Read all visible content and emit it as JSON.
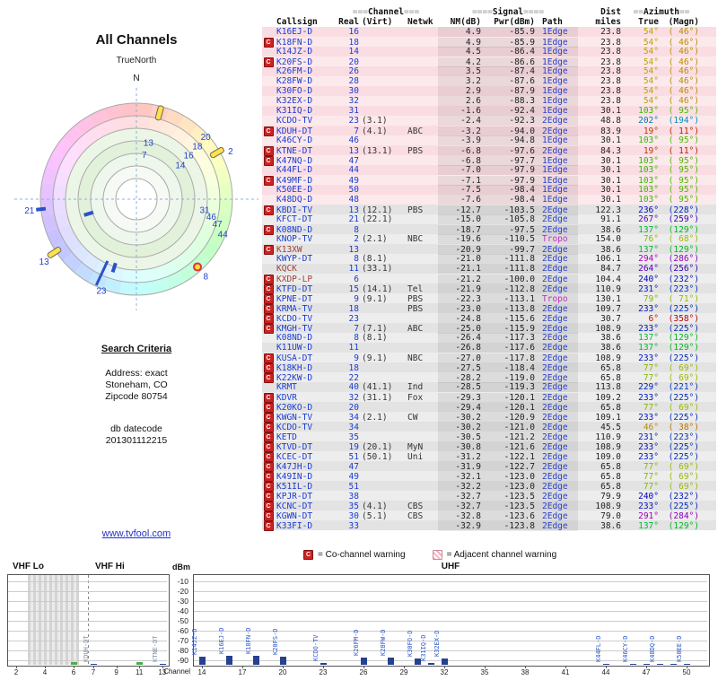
{
  "page_title": "All Channels",
  "link_text": "www.tvfool.com",
  "radar": {
    "true_north": "TrueNorth",
    "north": "N",
    "labels": [
      {
        "t": "13",
        "az": 12,
        "r": 0.6
      },
      {
        "t": "7",
        "az": 10,
        "r": 0.47
      },
      {
        "t": "20",
        "az": 48,
        "r": 0.97
      },
      {
        "t": "18",
        "az": 49,
        "r": 0.84
      },
      {
        "t": "16",
        "az": 50,
        "r": 0.71
      },
      {
        "t": "14",
        "az": 52,
        "r": 0.58
      },
      {
        "t": "2",
        "az": 63,
        "r": 1.1
      },
      {
        "t": "31",
        "az": 99,
        "r": 0.72
      },
      {
        "t": "46",
        "az": 103,
        "r": 0.8
      },
      {
        "t": "47",
        "az": 107,
        "r": 0.88
      },
      {
        "t": "44",
        "az": 112,
        "r": 0.97
      },
      {
        "t": "8",
        "az": 138,
        "r": 1.08
      },
      {
        "t": "23",
        "az": 201,
        "r": 1.02
      },
      {
        "t": "13",
        "az": 236,
        "r": 1.16
      },
      {
        "t": "21",
        "az": 264,
        "r": 1.12
      }
    ],
    "pointers": [
      {
        "type": "yellow",
        "az": 15,
        "r": 0.93
      },
      {
        "type": "yellow",
        "az": 60,
        "r": 0.97
      },
      {
        "type": "yellow",
        "az": 237,
        "r": 1.02
      },
      {
        "type": "dot",
        "az": 138,
        "r": 0.95
      },
      {
        "type": "line",
        "az": 205,
        "r": 0.85
      },
      {
        "type": "tick",
        "az": 264,
        "r": 1.0
      },
      {
        "type": "tick",
        "az": 198,
        "r": 0.75
      },
      {
        "type": "tick",
        "az": 253,
        "r": 0.52
      }
    ]
  },
  "search": {
    "heading": "Search Criteria",
    "lines": [
      "Address: exact",
      "Stoneham, CO",
      "Zipcode 80754"
    ],
    "datecode_label": "db datecode",
    "datecode": "201301112215"
  },
  "table": {
    "header": {
      "eq3": "===",
      "eq4": "====",
      "eq2": "==",
      "channel_group": "Channel",
      "signal_group": "Signal",
      "dist_group": "Dist",
      "azimuth_group": "Azimuth",
      "callsign": "Callsign",
      "real": "Real",
      "virt": "(Virt)",
      "netwk": "Netwk",
      "nm": "NM(dB)",
      "pwr": "Pwr(dBm)",
      "path": "Path",
      "miles": "miles",
      "true": "True",
      "magn": "(Magn)"
    },
    "row_columns": [
      "callsign",
      "real",
      "virt",
      "netwk",
      "nm_db",
      "pwr_dbm",
      "path",
      "dist_miles",
      "azimuth_true",
      "azimuth_magn",
      "flag",
      "analog"
    ],
    "rows": [
      [
        "K16EJ-D",
        "16",
        "",
        "",
        "4.9",
        "-85.9",
        "1Edge",
        "23.8",
        54,
        46,
        "",
        0
      ],
      [
        "K18FN-D",
        "18",
        "",
        "",
        "4.9",
        "-85.9",
        "1Edge",
        "23.8",
        54,
        46,
        "C",
        0
      ],
      [
        "K14JZ-D",
        "14",
        "",
        "",
        "4.5",
        "-86.4",
        "1Edge",
        "23.8",
        54,
        46,
        "",
        0
      ],
      [
        "K20FS-D",
        "20",
        "",
        "",
        "4.2",
        "-86.6",
        "1Edge",
        "23.8",
        54,
        46,
        "C",
        0
      ],
      [
        "K26FM-D",
        "26",
        "",
        "",
        "3.5",
        "-87.4",
        "1Edge",
        "23.8",
        54,
        46,
        "",
        0
      ],
      [
        "K28FW-D",
        "28",
        "",
        "",
        "3.2",
        "-87.6",
        "1Edge",
        "23.8",
        54,
        46,
        "",
        0
      ],
      [
        "K30FO-D",
        "30",
        "",
        "",
        "2.9",
        "-87.9",
        "1Edge",
        "23.8",
        54,
        46,
        "",
        0
      ],
      [
        "K32EX-D",
        "32",
        "",
        "",
        "2.6",
        "-88.3",
        "1Edge",
        "23.8",
        54,
        46,
        "",
        0
      ],
      [
        "K31IQ-D",
        "31",
        "",
        "",
        "-1.6",
        "-92.4",
        "1Edge",
        "30.1",
        103,
        95,
        "",
        0
      ],
      [
        "KCDO-TV",
        "23",
        "(3.1)",
        "",
        "-2.4",
        "-92.3",
        "2Edge",
        "48.8",
        202,
        194,
        "",
        0
      ],
      [
        "KDUH-DT",
        "7",
        "(4.1)",
        "ABC",
        "-3.2",
        "-94.0",
        "2Edge",
        "83.9",
        19,
        11,
        "C",
        0
      ],
      [
        "K46CY-D",
        "46",
        "",
        "",
        "-3.9",
        "-94.8",
        "1Edge",
        "30.1",
        103,
        95,
        "",
        0
      ],
      [
        "KTNE-DT",
        "13",
        "(13.1)",
        "PBS",
        "-6.8",
        "-97.6",
        "2Edge",
        "84.3",
        19,
        11,
        "C",
        0
      ],
      [
        "K47NQ-D",
        "47",
        "",
        "",
        "-6.8",
        "-97.7",
        "1Edge",
        "30.1",
        103,
        95,
        "C",
        0
      ],
      [
        "K44FL-D",
        "44",
        "",
        "",
        "-7.0",
        "-97.9",
        "1Edge",
        "30.1",
        103,
        95,
        "",
        0
      ],
      [
        "K49MF-D",
        "49",
        "",
        "",
        "-7.1",
        "-97.9",
        "1Edge",
        "30.1",
        103,
        95,
        "C",
        0
      ],
      [
        "K50EE-D",
        "50",
        "",
        "",
        "-7.5",
        "-98.4",
        "1Edge",
        "30.1",
        103,
        95,
        "",
        0
      ],
      [
        "K48DQ-D",
        "48",
        "",
        "",
        "-7.6",
        "-98.4",
        "1Edge",
        "30.1",
        103,
        95,
        "",
        0
      ],
      [
        "KBDI-TV",
        "13",
        "(12.1)",
        "PBS",
        "-12.7",
        "-103.5",
        "2Edge",
        "122.3",
        236,
        228,
        "C",
        0
      ],
      [
        "KFCT-DT",
        "21",
        "(22.1)",
        "",
        "-15.0",
        "-105.8",
        "2Edge",
        "91.1",
        267,
        259,
        "",
        0
      ],
      [
        "K08ND-D",
        "8",
        "",
        "",
        "-18.7",
        "-97.5",
        "2Edge",
        "38.6",
        137,
        129,
        "C",
        0
      ],
      [
        "KNOP-TV",
        "2",
        "(2.1)",
        "NBC",
        "-19.6",
        "-110.5",
        "Tropo",
        "154.0",
        76,
        68,
        "",
        0
      ],
      [
        "K13XW",
        "13",
        "",
        "",
        "-20.9",
        "-99.7",
        "2Edge",
        "38.6",
        137,
        129,
        "C",
        1
      ],
      [
        "KWYP-DT",
        "8",
        "(8.1)",
        "",
        "-21.0",
        "-111.8",
        "2Edge",
        "106.1",
        294,
        286,
        "",
        0
      ],
      [
        "KQCK",
        "11",
        "(33.1)",
        "",
        "-21.1",
        "-111.8",
        "2Edge",
        "84.7",
        264,
        256,
        "",
        1
      ],
      [
        "KXDP-LP",
        "6",
        "",
        "",
        "-21.2",
        "-100.0",
        "2Edge",
        "104.4",
        240,
        232,
        "C",
        1
      ],
      [
        "KTFD-DT",
        "15",
        "(14.1)",
        "Tel",
        "-21.9",
        "-112.8",
        "2Edge",
        "110.9",
        231,
        223,
        "C",
        0
      ],
      [
        "KPNE-DT",
        "9",
        "(9.1)",
        "PBS",
        "-22.3",
        "-113.1",
        "Tropo",
        "130.1",
        79,
        71,
        "C",
        0
      ],
      [
        "KRMA-TV",
        "18",
        "",
        "PBS",
        "-23.0",
        "-113.8",
        "2Edge",
        "109.7",
        233,
        225,
        "C",
        0
      ],
      [
        "KCDO-TV",
        "23",
        "",
        "",
        "-24.8",
        "-115.6",
        "2Edge",
        "30.7",
        6,
        358,
        "C",
        0
      ],
      [
        "KMGH-TV",
        "7",
        "(7.1)",
        "ABC",
        "-25.0",
        "-115.9",
        "2Edge",
        "108.9",
        233,
        225,
        "C",
        0
      ],
      [
        "K08ND-D",
        "8",
        "(8.1)",
        "",
        "-26.4",
        "-117.3",
        "2Edge",
        "38.6",
        137,
        129,
        "",
        0
      ],
      [
        "K11UW-D",
        "11",
        "",
        "",
        "-26.8",
        "-117.6",
        "2Edge",
        "38.6",
        137,
        129,
        "",
        0
      ],
      [
        "KUSA-DT",
        "9",
        "(9.1)",
        "NBC",
        "-27.0",
        "-117.8",
        "2Edge",
        "108.9",
        233,
        225,
        "C",
        0
      ],
      [
        "K18KH-D",
        "18",
        "",
        "",
        "-27.5",
        "-118.4",
        "2Edge",
        "65.8",
        77,
        69,
        "C",
        0
      ],
      [
        "K22KW-D",
        "22",
        "",
        "",
        "-28.2",
        "-119.0",
        "2Edge",
        "65.8",
        77,
        69,
        "C",
        0
      ],
      [
        "KRMT",
        "40",
        "(41.1)",
        "Ind",
        "-28.5",
        "-119.3",
        "2Edge",
        "113.8",
        229,
        221,
        "",
        0
      ],
      [
        "KDVR",
        "32",
        "(31.1)",
        "Fox",
        "-29.3",
        "-120.1",
        "2Edge",
        "109.2",
        233,
        225,
        "C",
        0
      ],
      [
        "K20KO-D",
        "20",
        "",
        "",
        "-29.4",
        "-120.1",
        "2Edge",
        "65.8",
        77,
        69,
        "C",
        0
      ],
      [
        "KWGN-TV",
        "34",
        "(2.1)",
        "CW",
        "-30.2",
        "-120.9",
        "2Edge",
        "109.1",
        233,
        225,
        "C",
        0
      ],
      [
        "KCDO-TV",
        "34",
        "",
        "",
        "-30.2",
        "-121.0",
        "2Edge",
        "45.5",
        46,
        38,
        "C",
        0
      ],
      [
        "KETD",
        "35",
        "",
        "",
        "-30.5",
        "-121.2",
        "2Edge",
        "110.9",
        231,
        223,
        "C",
        0
      ],
      [
        "KTVD-DT",
        "19",
        "(20.1)",
        "MyN",
        "-30.8",
        "-121.6",
        "2Edge",
        "108.9",
        233,
        225,
        "C",
        0
      ],
      [
        "KCEC-DT",
        "51",
        "(50.1)",
        "Uni",
        "-31.2",
        "-122.1",
        "2Edge",
        "109.0",
        233,
        225,
        "C",
        0
      ],
      [
        "K47JH-D",
        "47",
        "",
        "",
        "-31.9",
        "-122.7",
        "2Edge",
        "65.8",
        77,
        69,
        "C",
        0
      ],
      [
        "K49IN-D",
        "49",
        "",
        "",
        "-32.1",
        "-123.0",
        "2Edge",
        "65.8",
        77,
        69,
        "C",
        0
      ],
      [
        "K51IL-D",
        "51",
        "",
        "",
        "-32.2",
        "-123.0",
        "2Edge",
        "65.8",
        77,
        69,
        "C",
        0
      ],
      [
        "KPJR-DT",
        "38",
        "",
        "",
        "-32.7",
        "-123.5",
        "2Edge",
        "79.9",
        240,
        232,
        "C",
        0
      ],
      [
        "KCNC-DT",
        "35",
        "(4.1)",
        "CBS",
        "-32.7",
        "-123.5",
        "2Edge",
        "108.9",
        233,
        225,
        "C",
        0
      ],
      [
        "KGWN-DT",
        "30",
        "(5.1)",
        "CBS",
        "-32.8",
        "-123.6",
        "2Edge",
        "79.0",
        291,
        284,
        "C",
        0
      ],
      [
        "K33FI-D",
        "33",
        "",
        "",
        "-32.9",
        "-123.8",
        "2Edge",
        "38.6",
        137,
        129,
        "C",
        0
      ]
    ],
    "path_colors": {
      "1Edge": "#2940c8",
      "2Edge": "#2940c8",
      "Tropo": "#c030c0"
    },
    "callsign_color": "#1a3bd0",
    "analog_callsign_color": "#a04038"
  },
  "legend": {
    "co_symbol": "C",
    "co_text": "= Co-channel warning",
    "adj_text": "= Adjacent channel warning"
  },
  "chart_data": {
    "type": "bar",
    "dbm_label": "dBm",
    "channel_label": "Channel",
    "uhf_label": "UHF",
    "vhf_lo_label": "VHF Lo",
    "vhf_hi_label": "VHF Hi",
    "ylabel": "dBm",
    "xlabel": "Channel",
    "y_ticks": [
      -10,
      -20,
      -30,
      -40,
      -50,
      -60,
      -70,
      -80,
      -90
    ],
    "vhf_lo_ticks": [
      2,
      4,
      6
    ],
    "vhf_hi_ticks": [
      7,
      9,
      11,
      13
    ],
    "uhf_ticks": [
      14,
      17,
      20,
      23,
      26,
      29,
      32,
      35,
      38,
      41,
      44,
      47,
      50
    ],
    "bars": [
      {
        "ch": 7,
        "pwr": -94.0,
        "label": "KDUH-DT",
        "band": "hi",
        "dim": true
      },
      {
        "ch": 13,
        "pwr": -97.6,
        "label": "KTNE-DT",
        "band": "hi",
        "dim": true
      },
      {
        "ch": 14,
        "pwr": -86.4,
        "label": "K14JZ-D",
        "band": "uhf"
      },
      {
        "ch": 16,
        "pwr": -85.9,
        "label": "K16EJ-D",
        "band": "uhf"
      },
      {
        "ch": 18,
        "pwr": -85.9,
        "label": "K18FN-D",
        "band": "uhf"
      },
      {
        "ch": 20,
        "pwr": -86.6,
        "label": "K20FS-D",
        "band": "uhf"
      },
      {
        "ch": 23,
        "pwr": -92.3,
        "label": "KCDO-TV",
        "band": "uhf"
      },
      {
        "ch": 26,
        "pwr": -87.4,
        "label": "K26FM-D",
        "band": "uhf"
      },
      {
        "ch": 28,
        "pwr": -87.6,
        "label": "K28FW-D",
        "band": "uhf"
      },
      {
        "ch": 30,
        "pwr": -87.9,
        "label": "K30FO-D",
        "band": "uhf"
      },
      {
        "ch": 31,
        "pwr": -92.4,
        "label": "K31IQ-D",
        "band": "uhf"
      },
      {
        "ch": 32,
        "pwr": -88.3,
        "label": "K32EX-D",
        "band": "uhf"
      },
      {
        "ch": 44,
        "pwr": -97.9,
        "label": "K44FL-D",
        "band": "uhf"
      },
      {
        "ch": 46,
        "pwr": -94.8,
        "label": "K46CY-D",
        "band": "uhf"
      },
      {
        "ch": 47,
        "pwr": -97.7,
        "label": "",
        "band": "uhf"
      },
      {
        "ch": 48,
        "pwr": -98.4,
        "label": "K48DQ-D",
        "band": "uhf"
      },
      {
        "ch": 49,
        "pwr": -97.9,
        "label": "",
        "band": "uhf"
      },
      {
        "ch": 50,
        "pwr": -98.4,
        "label": "K50EE-D",
        "band": "uhf"
      }
    ],
    "analog_marks": [
      {
        "ch": 6,
        "band": "lo"
      },
      {
        "ch": 11,
        "band": "hi"
      }
    ]
  }
}
